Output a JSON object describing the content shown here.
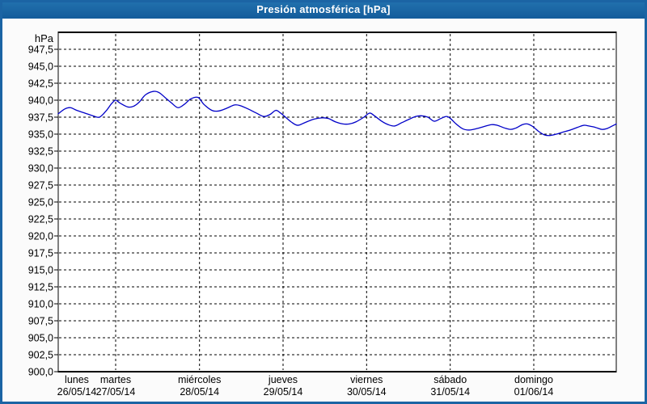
{
  "window": {
    "title": "Presión atmosférica [hPa]"
  },
  "colors": {
    "titlebar_top": "#2373AF",
    "titlebar_bottom": "#135C9B",
    "frame_border": "#1B64A4",
    "canvas_bg": "#FBFBFB",
    "plot_bg": "#FFFFFF",
    "grid": "#000000",
    "line": "#0000C8",
    "title_text": "#FFFFFF",
    "axis_text": "#000000"
  },
  "chart_data": {
    "type": "line",
    "title": "Presión atmosférica [hPa]",
    "unit_label": "hPa",
    "ylabel": "hPa",
    "xlabel": "",
    "ylim": [
      900,
      950
    ],
    "ytick_step": 2.5,
    "grid": true,
    "legend": "none",
    "yticks": [
      {
        "value": 947.5,
        "label": "947,5"
      },
      {
        "value": 945.0,
        "label": "945,0"
      },
      {
        "value": 942.5,
        "label": "942,5"
      },
      {
        "value": 940.0,
        "label": "940,0"
      },
      {
        "value": 937.5,
        "label": "937,5"
      },
      {
        "value": 935.0,
        "label": "935,0"
      },
      {
        "value": 932.5,
        "label": "932,5"
      },
      {
        "value": 930.0,
        "label": "930,0"
      },
      {
        "value": 927.5,
        "label": "927,5"
      },
      {
        "value": 925.0,
        "label": "925,0"
      },
      {
        "value": 922.5,
        "label": "922,5"
      },
      {
        "value": 920.0,
        "label": "920,0"
      },
      {
        "value": 917.5,
        "label": "917,5"
      },
      {
        "value": 915.0,
        "label": "915,0"
      },
      {
        "value": 912.5,
        "label": "912,5"
      },
      {
        "value": 910.0,
        "label": "910,0"
      },
      {
        "value": 907.5,
        "label": "907,5"
      },
      {
        "value": 905.0,
        "label": "905,0"
      },
      {
        "value": 902.5,
        "label": "902,5"
      },
      {
        "value": 900.0,
        "label": "900,0"
      }
    ],
    "xticks": [
      {
        "day": "lunes",
        "date": "26/05/14"
      },
      {
        "day": "martes",
        "date": "27/05/14"
      },
      {
        "day": "miércoles",
        "date": "28/05/14"
      },
      {
        "day": "jueves",
        "date": "29/05/14"
      },
      {
        "day": "viernes",
        "date": "30/05/14"
      },
      {
        "day": "sábado",
        "date": "31/05/14"
      },
      {
        "day": "domingo",
        "date": "01/06/14"
      }
    ],
    "series": [
      {
        "name": "Presión atmosférica",
        "color": "#0000C8",
        "points": [
          [
            72,
            938.0
          ],
          [
            80,
            938.7
          ],
          [
            87,
            938.9
          ],
          [
            95,
            938.5
          ],
          [
            105,
            938.1
          ],
          [
            115,
            937.7
          ],
          [
            123,
            937.5
          ],
          [
            131,
            938.4
          ],
          [
            138,
            939.5
          ],
          [
            143,
            940.0
          ],
          [
            148,
            939.6
          ],
          [
            158,
            939.0
          ],
          [
            165,
            939.1
          ],
          [
            172,
            939.7
          ],
          [
            180,
            940.8
          ],
          [
            190,
            941.3
          ],
          [
            197,
            941.1
          ],
          [
            205,
            940.3
          ],
          [
            212,
            939.6
          ],
          [
            220,
            938.9
          ],
          [
            228,
            939.4
          ],
          [
            236,
            940.2
          ],
          [
            245,
            940.4
          ],
          [
            252,
            939.4
          ],
          [
            262,
            938.5
          ],
          [
            270,
            938.4
          ],
          [
            280,
            938.8
          ],
          [
            290,
            939.3
          ],
          [
            297,
            939.2
          ],
          [
            307,
            938.7
          ],
          [
            317,
            938.1
          ],
          [
            326,
            937.6
          ],
          [
            334,
            937.9
          ],
          [
            341,
            938.5
          ],
          [
            347,
            938.1
          ],
          [
            352,
            937.6
          ],
          [
            360,
            936.8
          ],
          [
            368,
            936.3
          ],
          [
            377,
            936.7
          ],
          [
            388,
            937.2
          ],
          [
            398,
            937.4
          ],
          [
            406,
            937.3
          ],
          [
            415,
            936.8
          ],
          [
            424,
            936.5
          ],
          [
            432,
            936.5
          ],
          [
            440,
            936.8
          ],
          [
            450,
            937.5
          ],
          [
            457,
            938.1
          ],
          [
            463,
            937.7
          ],
          [
            472,
            936.9
          ],
          [
            480,
            936.4
          ],
          [
            488,
            936.2
          ],
          [
            497,
            936.7
          ],
          [
            506,
            937.2
          ],
          [
            514,
            937.6
          ],
          [
            521,
            937.7
          ],
          [
            529,
            937.5
          ],
          [
            537,
            936.9
          ],
          [
            545,
            937.3
          ],
          [
            552,
            937.6
          ],
          [
            557,
            937.3
          ],
          [
            564,
            936.5
          ],
          [
            572,
            935.8
          ],
          [
            580,
            935.6
          ],
          [
            589,
            935.8
          ],
          [
            598,
            936.1
          ],
          [
            608,
            936.4
          ],
          [
            615,
            936.3
          ],
          [
            624,
            935.9
          ],
          [
            631,
            935.7
          ],
          [
            638,
            935.9
          ],
          [
            646,
            936.4
          ],
          [
            652,
            936.5
          ],
          [
            659,
            936.1
          ],
          [
            666,
            935.4
          ],
          [
            673,
            934.9
          ],
          [
            680,
            934.8
          ],
          [
            688,
            935.0
          ],
          [
            696,
            935.3
          ],
          [
            705,
            935.6
          ],
          [
            714,
            936.0
          ],
          [
            722,
            936.3
          ],
          [
            728,
            936.2
          ],
          [
            736,
            936.0
          ],
          [
            744,
            935.7
          ],
          [
            750,
            935.8
          ],
          [
            757,
            936.2
          ],
          [
            762,
            936.5
          ]
        ]
      }
    ]
  }
}
